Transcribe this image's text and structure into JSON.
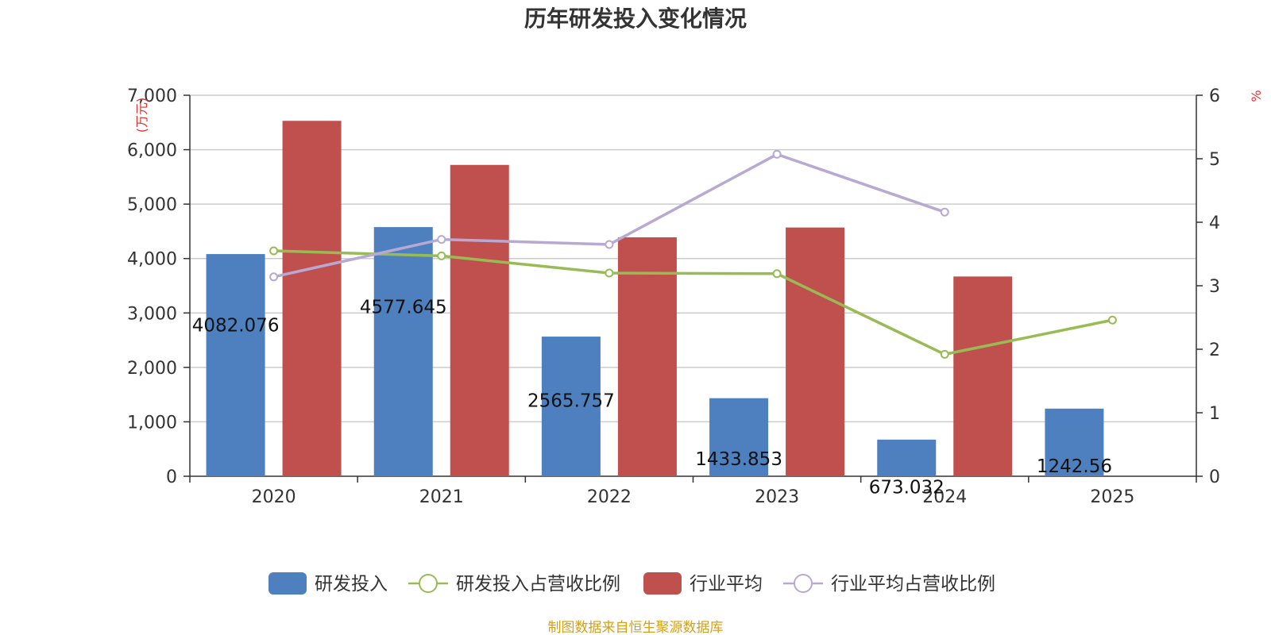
{
  "colors": {
    "rd": "#4e7fbe",
    "rd_ratio": "#99bb55",
    "industry": "#c0504d",
    "industry_ratio": "#b7a9d1",
    "unit": "#e03030",
    "source": "#d4a017"
  },
  "chart_data": {
    "type": "bar",
    "title": "历年研发投入变化情况",
    "categories": [
      "2020",
      "2021",
      "2022",
      "2023",
      "2024",
      "2025"
    ],
    "y_left": {
      "unit": "(万元)",
      "ylim": [
        0,
        7000
      ],
      "ticks": [
        "0",
        "1,000",
        "2,000",
        "3,000",
        "4,000",
        "5,000",
        "6,000",
        "7,000"
      ],
      "tick_values": [
        0,
        1000,
        2000,
        3000,
        4000,
        5000,
        6000,
        7000
      ]
    },
    "y_right": {
      "unit": "%",
      "ylim": [
        0,
        6
      ],
      "ticks": [
        "0",
        "1",
        "2",
        "3",
        "4",
        "5",
        "6"
      ],
      "tick_values": [
        0,
        1,
        2,
        3,
        4,
        5,
        6
      ]
    },
    "series": [
      {
        "name": "研发投入",
        "type": "bar",
        "axis": "left",
        "values": [
          4082.076,
          4577.645,
          2565.757,
          1433.853,
          673.032,
          1242.56
        ],
        "labels": [
          "4082.076",
          "4577.645",
          "2565.757",
          "1433.853",
          "673.032",
          "1242.56"
        ]
      },
      {
        "name": "研发投入占营收比例",
        "type": "line",
        "axis": "right",
        "values": [
          3.55,
          3.47,
          3.2,
          3.19,
          1.92,
          2.46
        ]
      },
      {
        "name": "行业平均",
        "type": "bar",
        "axis": "left",
        "values": [
          6530,
          5720,
          4390,
          4570,
          3670,
          null
        ]
      },
      {
        "name": "行业平均占营收比例",
        "type": "line",
        "axis": "right",
        "values": [
          3.14,
          3.73,
          3.65,
          5.07,
          4.16,
          null
        ]
      }
    ],
    "legend_position": "bottom",
    "grid": true
  },
  "source_text": "制图数据来自恒生聚源数据库"
}
